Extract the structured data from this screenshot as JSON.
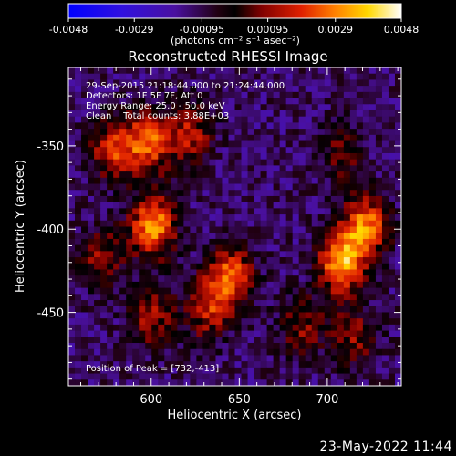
{
  "colorbar": {
    "ticks": [
      "-0.0048",
      "-0.0029",
      "-0.00095",
      "0.00095",
      "0.0029",
      "0.0048"
    ],
    "units_label": "(photons cm⁻² s⁻¹ asec⁻²)",
    "range": [
      -0.0048,
      0.0048
    ]
  },
  "chart_data": {
    "type": "heatmap",
    "title": "Reconstructed RHESSI Image",
    "xlabel": "Heliocentric X (arcsec)",
    "ylabel": "Heliocentric Y (arcsec)",
    "xlim": [
      553,
      742
    ],
    "ylim": [
      -494,
      -303
    ],
    "xticks": [
      600,
      650,
      700
    ],
    "yticks": [
      -350,
      -400,
      -450
    ],
    "annotations": [
      "29-Sep-2015 21:18:44.000 to 21:24:44.000",
      "Detectors: 1F 5F 7F, Att 0",
      "Energy Range: 25.0 - 50.0 keV",
      "Clean    Total counts: 3.88E+03"
    ],
    "peak_label": "Position of Peak = [732,-413]",
    "sources": [
      {
        "x": 601,
        "y": -398,
        "amp": 0.0044
      },
      {
        "x": 708,
        "y": -420,
        "amp": 0.0046
      },
      {
        "x": 722,
        "y": -398,
        "amp": 0.004
      },
      {
        "x": 645,
        "y": -428,
        "amp": 0.0036
      },
      {
        "x": 632,
        "y": -448,
        "amp": 0.0026
      },
      {
        "x": 600,
        "y": -452,
        "amp": 0.0024
      },
      {
        "x": 578,
        "y": -352,
        "amp": 0.003
      },
      {
        "x": 598,
        "y": -348,
        "amp": 0.0036
      },
      {
        "x": 572,
        "y": -418,
        "amp": 0.0022
      },
      {
        "x": 622,
        "y": -343,
        "amp": 0.0026
      },
      {
        "x": 708,
        "y": -355,
        "amp": 0.0016
      },
      {
        "x": 686,
        "y": -458,
        "amp": 0.002
      },
      {
        "x": 715,
        "y": -465,
        "amp": 0.002
      }
    ]
  },
  "footer_timestamp": "23-May-2022 11:44"
}
